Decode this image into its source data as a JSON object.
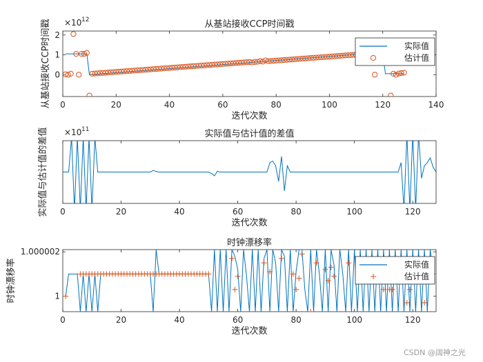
{
  "watermark": "CSDN @阔神之光",
  "colors": {
    "actual": "#0072BD",
    "estimate": "#D95319",
    "axes": "#262626"
  },
  "chart_data": [
    {
      "type": "line",
      "title": "从基站接收CCP时间戳",
      "xlabel": "迭代次数",
      "ylabel": "从基站接收CCP时间戳",
      "xlim": [
        0,
        140
      ],
      "ylim": [
        -1.1,
        2.2
      ],
      "exponent_label": "×10",
      "exponent_power": "12",
      "xticks": [
        "0",
        "20",
        "40",
        "60",
        "80",
        "100",
        "120",
        "140"
      ],
      "yticks": [
        "0",
        "1",
        "2"
      ],
      "ytick_values": [
        0,
        1,
        2
      ],
      "xtick_values": [
        0,
        20,
        40,
        60,
        80,
        100,
        120,
        140
      ],
      "legend": {
        "location": "top-right",
        "entries": [
          "实际值",
          "估计值"
        ]
      },
      "series": [
        {
          "name": "实际值",
          "style": "line",
          "x": [
            1,
            9,
            10,
            110,
            120,
            121,
            128
          ],
          "y": [
            1.05,
            1.05,
            0.0,
            1.02,
            1.05,
            0.05,
            0.05
          ]
        },
        {
          "name": "估计值",
          "style": "circle",
          "x": [
            1,
            2,
            3,
            4,
            5,
            6,
            7,
            8,
            9,
            10,
            11,
            12,
            13,
            14,
            15,
            16,
            17,
            18,
            19,
            20,
            21,
            22,
            23,
            24,
            25,
            26,
            27,
            28,
            29,
            30,
            31,
            32,
            33,
            34,
            35,
            36,
            37,
            38,
            39,
            40,
            41,
            42,
            43,
            44,
            45,
            46,
            47,
            48,
            49,
            50,
            51,
            52,
            53,
            54,
            55,
            56,
            57,
            58,
            59,
            60,
            61,
            62,
            63,
            64,
            65,
            66,
            67,
            68,
            69,
            70,
            71,
            72,
            73,
            74,
            75,
            76,
            77,
            78,
            79,
            80,
            81,
            82,
            83,
            84,
            85,
            86,
            87,
            88,
            89,
            90,
            91,
            92,
            93,
            94,
            95,
            96,
            97,
            98,
            99,
            100,
            101,
            102,
            103,
            104,
            105,
            106,
            107,
            108,
            109,
            110,
            117,
            123,
            124,
            125,
            126,
            127,
            128
          ],
          "y": [
            0.02,
            0.0,
            0.05,
            2.05,
            1.05,
            0.0,
            1.05,
            1.05,
            1.1,
            -1.05,
            0.05,
            0.06,
            0.07,
            0.08,
            0.09,
            0.1,
            0.11,
            0.12,
            0.13,
            0.14,
            0.15,
            0.16,
            0.17,
            0.18,
            0.19,
            0.2,
            0.21,
            0.22,
            0.23,
            0.24,
            0.25,
            0.26,
            0.27,
            0.28,
            0.29,
            0.3,
            0.31,
            0.32,
            0.33,
            0.34,
            0.35,
            0.36,
            0.37,
            0.38,
            0.39,
            0.4,
            0.41,
            0.42,
            0.43,
            0.44,
            0.45,
            0.46,
            0.47,
            0.48,
            0.49,
            0.5,
            0.51,
            0.52,
            0.53,
            0.54,
            0.55,
            0.56,
            0.57,
            0.58,
            0.59,
            0.6,
            0.61,
            0.62,
            0.63,
            0.64,
            0.62,
            0.64,
            0.65,
            0.68,
            0.66,
            0.72,
            0.68,
            0.69,
            0.7,
            0.71,
            0.72,
            0.73,
            0.74,
            0.75,
            0.76,
            0.77,
            0.78,
            0.79,
            0.8,
            0.81,
            0.82,
            0.83,
            0.84,
            0.85,
            0.86,
            0.87,
            0.88,
            0.89,
            0.9,
            0.91,
            0.92,
            0.93,
            0.94,
            0.95,
            0.96,
            0.97,
            0.98,
            0.99,
            1.0,
            1.01,
            0.0,
            -1.05,
            0.05,
            0.0,
            0.06,
            0.08,
            0.1
          ]
        }
      ]
    },
    {
      "type": "line",
      "title": "实际值与估计值的差值",
      "xlabel": "迭代次数",
      "ylabel": "实际值与估计值的差值",
      "xlim": [
        0,
        128
      ],
      "ylim": [
        -1,
        1
      ],
      "exponent_label": "×10",
      "exponent_power": "11",
      "xticks": [
        "0",
        "20",
        "40",
        "60",
        "80",
        "100",
        "120"
      ],
      "xtick_values": [
        0,
        20,
        40,
        60,
        80,
        100,
        120
      ],
      "series": [
        {
          "name": "实际值与估计值的差值",
          "style": "line",
          "x": [
            0,
            1,
            2,
            3,
            4,
            5,
            6,
            7,
            8,
            9,
            10,
            11,
            12,
            30,
            31,
            32,
            33,
            34,
            50,
            51,
            52,
            53,
            54,
            70,
            71,
            72,
            73,
            74,
            75,
            76,
            77,
            78,
            100,
            110,
            115,
            116,
            117,
            118,
            119,
            120,
            121,
            122,
            123,
            124,
            125,
            126,
            127,
            128
          ],
          "y": [
            0,
            0,
            0,
            1.1,
            -1.2,
            1.1,
            -1.2,
            1.1,
            -1.2,
            1.1,
            -1.2,
            1.1,
            0,
            0,
            0.05,
            0.02,
            0,
            0,
            0,
            -0.05,
            -0.12,
            0.02,
            0,
            0,
            0.3,
            0.35,
            0.2,
            -0.3,
            0.5,
            -0.6,
            0.2,
            0,
            0,
            0,
            0,
            0.3,
            -1.2,
            1.2,
            -1.2,
            1.2,
            -1.2,
            1.2,
            -0.2,
            0.2,
            0.3,
            0.45,
            0.15,
            0
          ]
        }
      ]
    },
    {
      "type": "line",
      "title": "时钟漂移率",
      "xlabel": "迭代次数",
      "ylabel": "时钟漂移率",
      "xlim": [
        0,
        128
      ],
      "ylim": [
        0.9999993,
        1.0000021
      ],
      "xticks": [
        "0",
        "20",
        "40",
        "60",
        "80",
        "100",
        "120"
      ],
      "xtick_values": [
        0,
        20,
        40,
        60,
        80,
        100,
        120
      ],
      "yticks": [
        "1",
        "1.000002"
      ],
      "ytick_values": [
        1.0,
        1.000002
      ],
      "legend": {
        "location": "top-right",
        "entries": [
          "实际值",
          "估计值"
        ]
      },
      "series": [
        {
          "name": "实际值",
          "style": "line",
          "x": [
            1,
            2,
            5,
            6,
            7,
            8,
            9,
            10,
            11,
            12,
            13,
            14,
            15,
            16,
            17,
            18,
            19,
            20,
            21,
            22,
            23,
            24,
            25,
            26,
            27,
            28,
            29,
            30,
            31,
            32,
            33,
            34,
            35,
            36,
            37,
            38,
            39,
            40,
            41,
            42,
            43,
            44,
            45,
            46,
            47,
            48,
            49,
            50,
            51,
            52,
            53,
            54,
            55,
            56,
            57,
            58,
            59,
            60,
            61,
            62,
            63,
            64,
            65,
            66,
            67,
            68,
            69,
            70,
            71,
            72,
            73,
            74,
            75,
            76,
            77,
            78,
            79,
            80,
            81,
            82,
            83,
            84,
            85,
            86,
            87,
            88,
            89,
            90,
            91,
            92,
            93,
            94,
            95,
            96,
            97,
            98,
            99,
            100,
            101,
            102,
            103,
            104,
            105,
            106,
            107,
            108,
            109,
            110,
            111,
            112,
            113,
            114,
            115,
            116,
            117,
            118,
            119,
            120,
            121,
            122,
            123,
            124,
            125,
            126,
            127,
            128
          ],
          "y": [
            1.0,
            1.000001,
            1.000001,
            0.9999993,
            1.000001,
            0.9999993,
            1.000001,
            0.9999993,
            1.000001,
            0.9999993,
            1.000001,
            1.000001,
            1.000001,
            1.000001,
            1.000001,
            1.000001,
            1.000001,
            1.000001,
            1.000001,
            1.000001,
            1.000001,
            1.000001,
            1.000001,
            1.000001,
            1.000001,
            1.000001,
            1.000001,
            1.000001,
            0.9999993,
            1.0000021,
            1.000001,
            1.000001,
            1.000001,
            1.000001,
            1.000001,
            1.000001,
            1.000001,
            1.000001,
            1.000001,
            1.000001,
            1.000001,
            1.000001,
            1.000001,
            1.000001,
            1.000001,
            1.000001,
            1.000001,
            1.000001,
            0.9999993,
            1.0000021,
            0.9999993,
            1.0000021,
            0.9999993,
            1.0000021,
            0.9999993,
            1.0000021,
            1.0000018,
            1.0000012,
            0.9999993,
            1.0000021,
            1.0000009,
            0.9999993,
            1.0000021,
            0.9999993,
            1.0000021,
            0.9999993,
            1.0000017,
            1.0000021,
            0.9999993,
            1.0000021,
            1.0000015,
            0.9999993,
            1.0000021,
            1.0000018,
            0.9999993,
            1.0000021,
            0.9999993,
            1.0000011,
            1.0000021,
            1.0000021,
            1.0000003,
            0.9999993,
            1.0000021,
            0.9999993,
            1.0000021,
            1.000001,
            0.9999993,
            1.0000021,
            0.9999993,
            1.0000021,
            1.0000014,
            0.9999993,
            1.0000021,
            1.000001,
            0.9999993,
            1.0000021,
            0.9999993,
            1.0000021,
            0.9999993,
            1.0000021,
            0.9999993,
            1.0000021,
            0.9999993,
            1.0000021,
            0.9999993,
            1.0000021,
            0.9999993,
            1.0000021,
            0.9999993,
            1.0000021,
            0.9999993,
            1.0000021,
            0.9999993,
            1.0000021,
            0.9999993,
            1.0000021,
            0.9999993,
            1.0000021,
            0.9999993,
            1.0000021,
            0.9999993,
            1.0000021,
            0.9999993,
            1.0000021,
            1.000001,
            1.000001
          ]
        },
        {
          "name": "估计值",
          "style": "plus",
          "x": [
            1,
            6,
            7,
            8,
            9,
            10,
            11,
            12,
            13,
            14,
            15,
            16,
            17,
            18,
            19,
            20,
            21,
            22,
            23,
            24,
            25,
            26,
            27,
            28,
            29,
            30,
            31,
            32,
            33,
            34,
            35,
            36,
            37,
            38,
            39,
            40,
            41,
            42,
            43,
            44,
            45,
            46,
            47,
            48,
            49,
            50,
            58,
            59,
            60,
            69,
            71,
            75,
            79,
            80,
            81,
            82,
            85,
            87,
            90,
            91,
            92,
            93,
            98,
            110,
            112,
            113,
            115,
            118,
            119,
            122,
            124,
            128
          ],
          "y": [
            1.0,
            1.000001,
            1.000001,
            1.000001,
            1.000001,
            1.000001,
            1.000001,
            1.000001,
            1.000001,
            1.000001,
            1.000001,
            1.000001,
            1.000001,
            1.000001,
            1.000001,
            1.000001,
            1.000001,
            1.000001,
            1.000001,
            1.000001,
            1.000001,
            1.000001,
            1.000001,
            1.000001,
            1.000001,
            1.000001,
            1.000001,
            1.000001,
            1.000001,
            1.000001,
            1.000001,
            1.000001,
            1.000001,
            1.000001,
            1.000001,
            1.000001,
            1.000001,
            1.000001,
            1.000001,
            1.000001,
            1.000001,
            1.000001,
            1.000001,
            1.000001,
            1.000001,
            1.000001,
            1.0000017,
            1.0000003,
            1.0000009,
            1.0000015,
            1.0000011,
            1.0000017,
            1.000001,
            1.0000003,
            1.0000008,
            1.0000019,
            0.9999993,
            1.0000015,
            1.0000012,
            1.0000007,
            1.0000013,
            1.0000009,
            1.0000015,
            1.0000003,
            1.0000003,
            1.0000003,
            1.0000013,
            0.9999997,
            1.0000003,
            1.0000014,
            0.9999997,
            1.000001
          ]
        }
      ]
    }
  ]
}
